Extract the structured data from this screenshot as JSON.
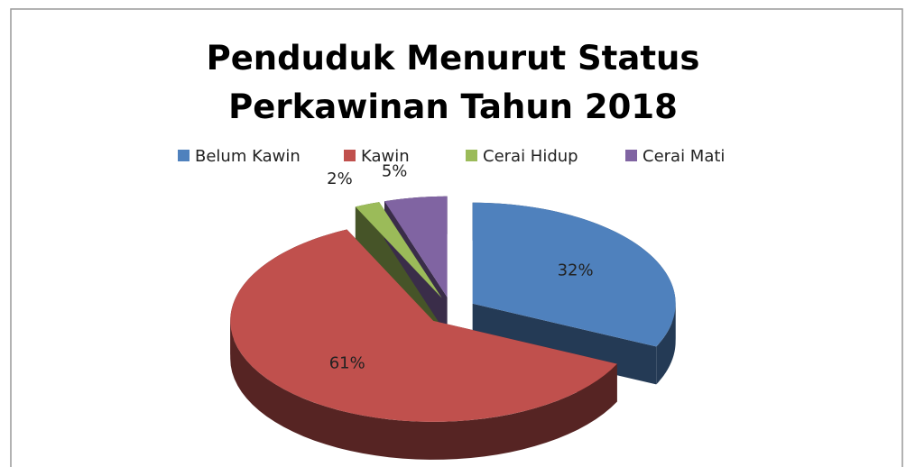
{
  "chart_data": {
    "type": "pie3d",
    "title": "Penduduk Menurut Status\nPerkawinan Tahun 2018",
    "categories": [
      "Belum Kawin",
      "Kawin",
      "Cerai Hidup",
      "Cerai Mati"
    ],
    "values": [
      32,
      61,
      2,
      5
    ],
    "value_labels": [
      "32%",
      "61%",
      "2%",
      "5%"
    ],
    "colors": [
      "#4f81bd",
      "#c0504d",
      "#9bbb59",
      "#8064a2"
    ],
    "legend": "top"
  }
}
